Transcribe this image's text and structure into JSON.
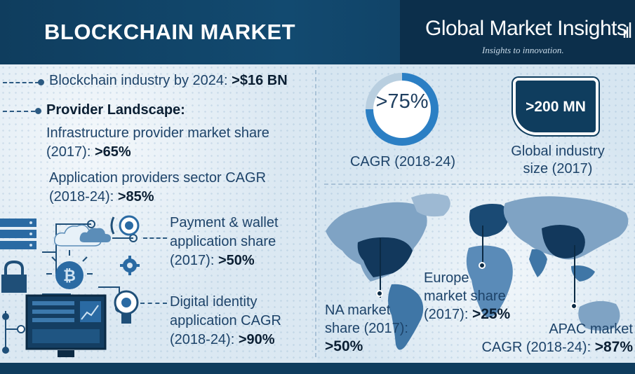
{
  "header": {
    "title": "BLOCKCHAIN MARKET",
    "brand_name": "Global Market Insights",
    "brand_tagline": "Insights to innovation."
  },
  "stats": {
    "industry_label": "Blockchain industry by 2024: ",
    "industry_value": ">$16 BN",
    "provider_heading": "Provider Landscape:",
    "infra_line1": "Infrastructure provider market share",
    "infra_line2": "(2017): ",
    "infra_value": ">65%",
    "app_line1": "Application providers sector CAGR",
    "app_line2": "(2018-24): ",
    "app_value": ">85%",
    "payment_line1": "Payment & wallet",
    "payment_line2": "application share",
    "payment_line3": "(2017): ",
    "payment_value": ">50%",
    "digital_line1": "Digital identity",
    "digital_line2": "application CAGR",
    "digital_line3": "(2018-24): ",
    "digital_value": ">90%"
  },
  "cagr": {
    "value": ">75%",
    "fill_fraction": 0.75,
    "label": "CAGR (2018-24)"
  },
  "size": {
    "value": ">200 MN",
    "label_line1": "Global industry",
    "label_line2": "size (2017)"
  },
  "regions": {
    "na_line1": "NA market",
    "na_line2": "share (2017):",
    "na_value": ">50%",
    "europe_line1": "Europe",
    "europe_line2": "market share",
    "europe_line3": "(2017): ",
    "europe_value": ">25%",
    "apac_line1": "APAC market",
    "apac_line2": "CAGR (2018-24): ",
    "apac_value": ">87%"
  },
  "icons": [
    "server-icon",
    "cloud-icon",
    "bitcoin-icon",
    "padlock-icon",
    "monitor-icon",
    "lightbulb-icon",
    "gear-icon",
    "world-map-icon"
  ],
  "colors": {
    "header": "#0f3d5e",
    "accent": "#2b7fc4",
    "text": "#1d4369"
  }
}
